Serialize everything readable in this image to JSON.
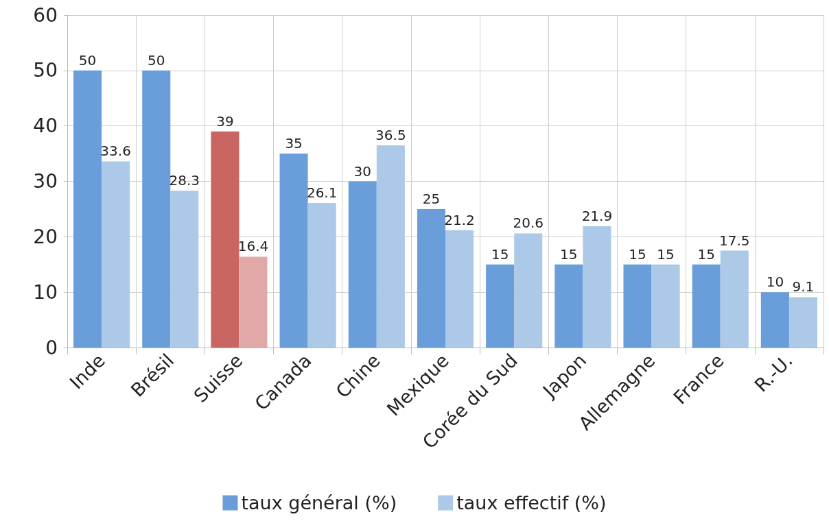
{
  "chart_data": {
    "type": "bar",
    "categories": [
      "Inde",
      "Brésil",
      "Suisse",
      "Canada",
      "Chine",
      "Mexique",
      "Corée du Sud",
      "Japon",
      "Allemagne",
      "France",
      "R.-U."
    ],
    "series": [
      {
        "name": "taux général (%)",
        "color": "#6a9edb",
        "colors": [
          "#6a9edb",
          "#6a9edb",
          "#c96662",
          "#6a9edb",
          "#6a9edb",
          "#6a9edb",
          "#6a9edb",
          "#6a9edb",
          "#6a9edb",
          "#6a9edb",
          "#6a9edb"
        ],
        "values": [
          50,
          50,
          39,
          35,
          30,
          25,
          15,
          15,
          15,
          15,
          10
        ]
      },
      {
        "name": "taux effectif (%)",
        "color": "#adc9e8",
        "colors": [
          "#adc9e8",
          "#adc9e8",
          "#e0a8a6",
          "#adc9e8",
          "#adc9e8",
          "#adc9e8",
          "#adc9e8",
          "#adc9e8",
          "#adc9e8",
          "#adc9e8",
          "#adc9e8"
        ],
        "values": [
          33.6,
          28.3,
          16.4,
          26.1,
          36.5,
          21.2,
          20.6,
          21.9,
          15,
          17.5,
          9.1
        ]
      }
    ],
    "ylim": [
      0,
      60
    ],
    "yticks": [
      0,
      10,
      20,
      30,
      40,
      50,
      60
    ],
    "grid": true,
    "legend": "bottom",
    "data_labels": true
  }
}
